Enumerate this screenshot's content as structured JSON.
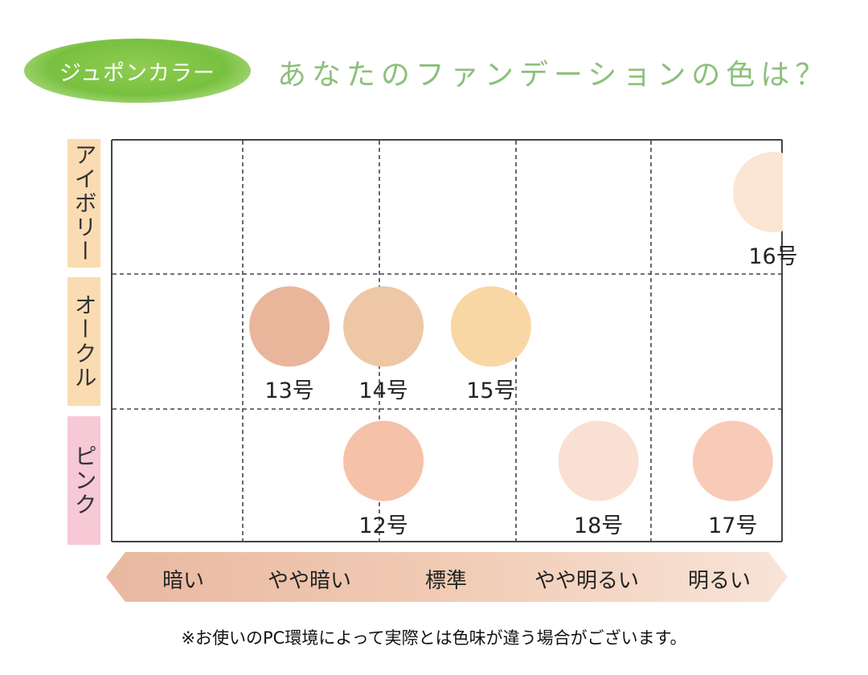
{
  "header": {
    "badge_label": "ジュポンカラー",
    "title": "あなたのファンデーションの色は？"
  },
  "colors": {
    "badge_green": "#79c040",
    "title_green": "#8cc07a",
    "tab_ochre": "#fbdcb2",
    "tab_pink": "#f7c8d6",
    "arrow_fill": "#f2ccb3"
  },
  "chart_data": {
    "type": "scatter",
    "rows": [
      {
        "label": "アイボリー",
        "tab_color": "#fbdcb2"
      },
      {
        "label": "オークル",
        "tab_color": "#fbdcb2"
      },
      {
        "label": "ピンク",
        "tab_color": "#f7c8d6"
      }
    ],
    "columns": [
      "暗い",
      "やや暗い",
      "標準",
      "やや明るい",
      "明るい"
    ],
    "swatches": [
      {
        "label": "16号",
        "row": 0,
        "col": 4.5,
        "color": "#fbe5d3"
      },
      {
        "label": "13号",
        "row": 1,
        "col": 0.9,
        "color": "#e9b69b"
      },
      {
        "label": "14号",
        "row": 1,
        "col": 1.6,
        "color": "#edc7a6"
      },
      {
        "label": "15号",
        "row": 1,
        "col": 2.4,
        "color": "#f8d7a4"
      },
      {
        "label": "12号",
        "row": 2,
        "col": 1.6,
        "color": "#f5c1a9"
      },
      {
        "label": "18号",
        "row": 2,
        "col": 3.2,
        "color": "#fae0d2"
      },
      {
        "label": "17号",
        "row": 2,
        "col": 4.2,
        "color": "#f8cbb8"
      }
    ],
    "legend": "none"
  },
  "note": "※お使いのPC環境によって実際とは色味が違う場合がございます。"
}
